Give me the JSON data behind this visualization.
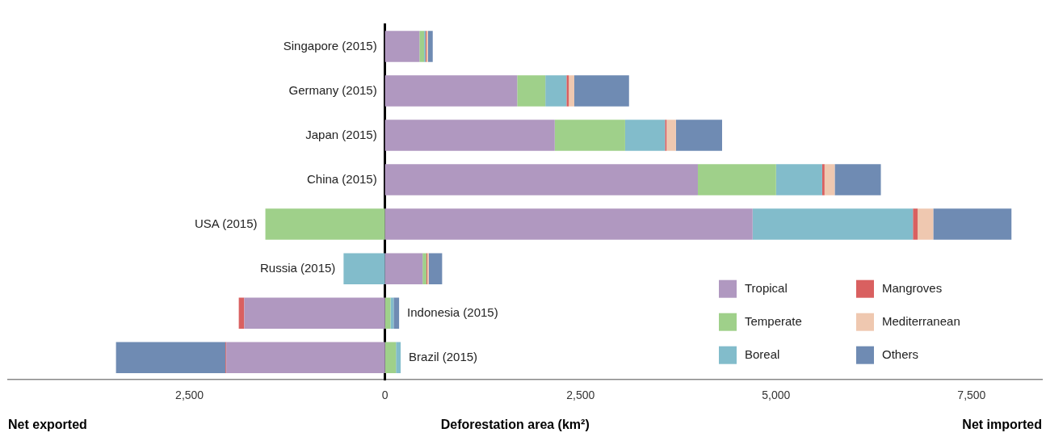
{
  "chart_data": {
    "type": "bar",
    "orientation": "horizontal",
    "stacked": true,
    "categories": [
      "Singapore (2015)",
      "Germany (2015)",
      "Japan (2015)",
      "China (2015)",
      "USA (2015)",
      "Russia (2015)",
      "Indonesia (2015)",
      "Brazil (2015)"
    ],
    "series": [
      {
        "name": "Tropical",
        "color": "#b098c0",
        "values": [
          440,
          1690,
          2170,
          4000,
          4700,
          480,
          -1800,
          -2030
        ]
      },
      {
        "name": "Temperate",
        "color": "#9fd08a",
        "values": [
          60,
          360,
          900,
          1000,
          -1530,
          50,
          70,
          140
        ]
      },
      {
        "name": "Boreal",
        "color": "#82bccb",
        "values": [
          20,
          270,
          510,
          590,
          2050,
          -530,
          40,
          60
        ]
      },
      {
        "name": "Mangroves",
        "color": "#d96060",
        "values": [
          10,
          30,
          20,
          30,
          60,
          10,
          -70,
          -10
        ]
      },
      {
        "name": "Mediterranean",
        "color": "#efc8b0",
        "values": [
          20,
          70,
          120,
          130,
          200,
          20,
          0,
          0
        ]
      },
      {
        "name": "Others",
        "color": "#6f8bb3",
        "values": [
          60,
          700,
          590,
          590,
          1000,
          170,
          70,
          -1400
        ]
      }
    ],
    "xlim": [
      -4820,
      8400
    ],
    "xticks": [
      {
        "value": -2500,
        "label": "2,500"
      },
      0,
      {
        "value": 2500,
        "label": "2,500"
      },
      {
        "value": 5000,
        "label": "5,000"
      },
      {
        "value": 7500,
        "label": "7,500"
      }
    ],
    "xlabel": "Deforestation area (km²)",
    "annotations": [
      "Net exported",
      "Net imported"
    ],
    "legend": "bottom right",
    "grid": false
  }
}
